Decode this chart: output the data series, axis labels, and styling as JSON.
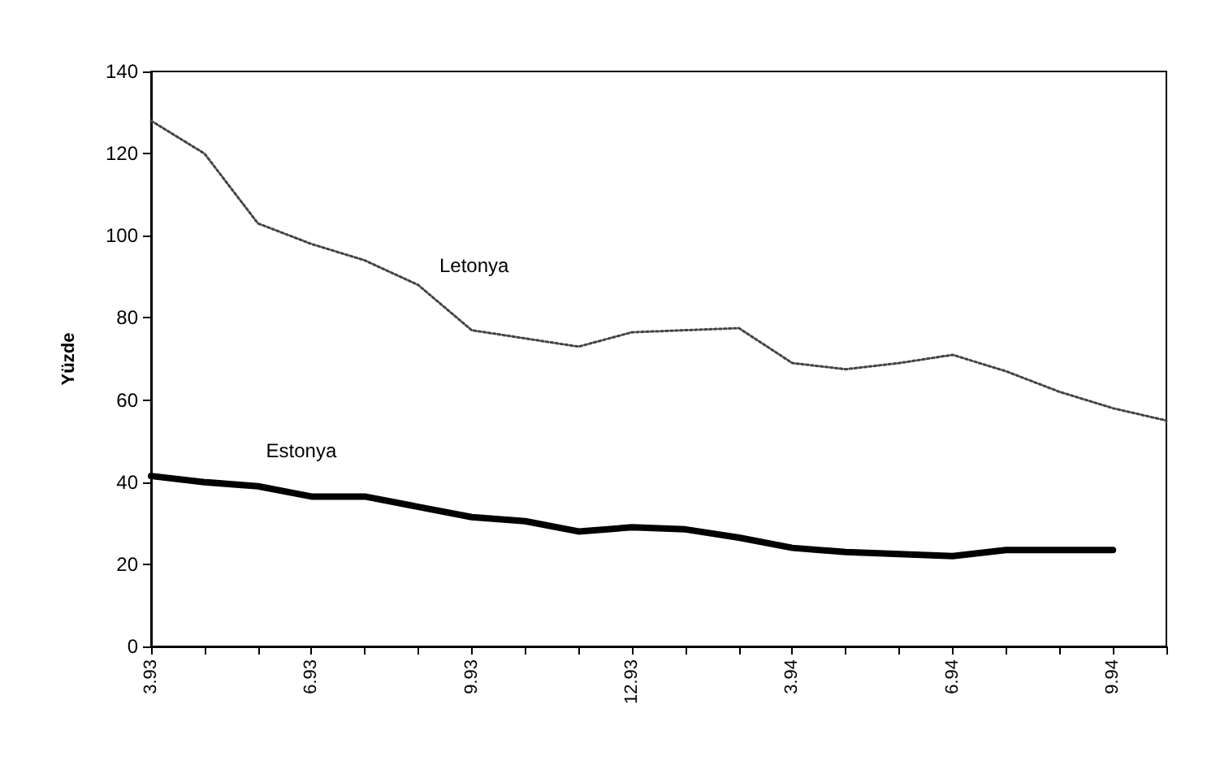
{
  "chart_data": {
    "type": "line",
    "ylabel": "Yüzde",
    "categories": [
      "3.93",
      null,
      null,
      "6.93",
      null,
      null,
      "9.93",
      null,
      null,
      "12.93",
      null,
      null,
      "3.94",
      null,
      null,
      "6.94",
      null,
      null,
      "9.94",
      null
    ],
    "series": [
      {
        "name": "Letonya",
        "color": "#444444",
        "line_style": "dotted",
        "values": [
          128,
          120,
          103,
          98,
          94,
          88,
          77,
          75,
          73,
          76.5,
          77,
          77.5,
          69,
          67.5,
          69,
          71,
          67,
          62,
          58,
          55
        ]
      },
      {
        "name": "Estonya",
        "color": "#000000",
        "line_style": "solid",
        "values": [
          41.5,
          40,
          39,
          36.5,
          36.5,
          34,
          31.5,
          30.5,
          28,
          29,
          28.5,
          26.5,
          24,
          23,
          22.5,
          22,
          23.5,
          23.5,
          23.5,
          null
        ]
      }
    ],
    "ylim": [
      0,
      140
    ],
    "yticks": [
      0,
      20,
      40,
      60,
      80,
      100,
      120,
      140
    ],
    "grid": false,
    "legend": false,
    "marker": "none"
  }
}
